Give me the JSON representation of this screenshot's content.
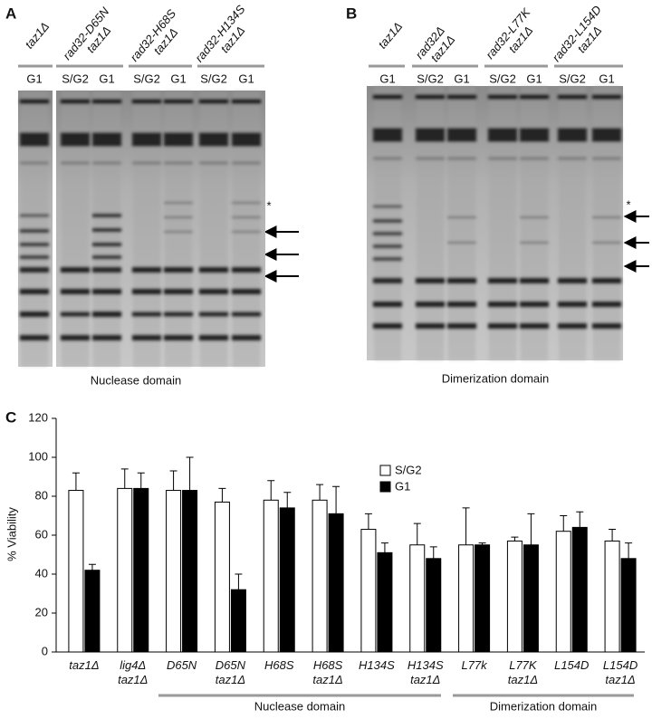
{
  "panel_a": {
    "label": "A",
    "strains": [
      {
        "name": [
          "taz1Δ"
        ],
        "lanes": [
          "G1"
        ]
      },
      {
        "name": [
          "rad32-D65N",
          "taz1Δ"
        ],
        "lanes": [
          "S/G2",
          "G1"
        ]
      },
      {
        "name": [
          "rad32-H68S",
          "taz1Δ"
        ],
        "lanes": [
          "S/G2",
          "G1"
        ]
      },
      {
        "name": [
          "rad32-H134S",
          "taz1Δ"
        ],
        "lanes": [
          "S/G2",
          "G1"
        ]
      }
    ],
    "marker": "*",
    "caption": "Nuclease domain"
  },
  "panel_b": {
    "label": "B",
    "strains": [
      {
        "name": [
          "taz1Δ"
        ],
        "lanes": [
          "G1"
        ]
      },
      {
        "name": [
          "rad32Δ",
          "taz1Δ"
        ],
        "lanes": [
          "S/G2",
          "G1"
        ]
      },
      {
        "name": [
          "rad32-L77K",
          "taz1Δ"
        ],
        "lanes": [
          "S/G2",
          "G1"
        ]
      },
      {
        "name": [
          "rad32-L154D",
          "taz1Δ"
        ],
        "lanes": [
          "S/G2",
          "G1"
        ]
      }
    ],
    "marker": "*",
    "caption": "Dimerization domain"
  },
  "chart_data": {
    "type": "bar",
    "label": "C",
    "y_label": "% Viability",
    "categories": [
      [
        "taz1Δ"
      ],
      [
        "lig4Δ",
        "taz1Δ"
      ],
      [
        "D65N"
      ],
      [
        "D65N",
        "taz1Δ"
      ],
      [
        "H68S"
      ],
      [
        "H68S",
        "taz1Δ"
      ],
      [
        "H134S"
      ],
      [
        "H134S",
        "taz1Δ"
      ],
      [
        "L77k"
      ],
      [
        "L77K",
        "taz1Δ"
      ],
      [
        "L154D"
      ],
      [
        "L154D",
        "taz1Δ"
      ]
    ],
    "series": [
      {
        "name": "S/G2",
        "color": "#ffffff",
        "values": [
          83,
          84,
          83,
          77,
          78,
          78,
          63,
          55,
          55,
          57,
          62,
          57
        ],
        "errors": [
          9,
          10,
          10,
          7,
          10,
          8,
          8,
          11,
          19,
          2,
          8,
          6
        ]
      },
      {
        "name": "G1",
        "color": "#000000",
        "values": [
          42,
          84,
          83,
          32,
          74,
          71,
          51,
          48,
          55,
          55,
          64,
          48
        ],
        "errors": [
          3,
          8,
          17,
          8,
          8,
          14,
          5,
          6,
          1,
          16,
          8,
          8
        ]
      }
    ],
    "ylim": [
      0,
      120
    ],
    "yticks": [
      0,
      20,
      40,
      60,
      80,
      100,
      120
    ],
    "group_labels": [
      "Nuclease domain",
      "Dimerization domain"
    ]
  }
}
